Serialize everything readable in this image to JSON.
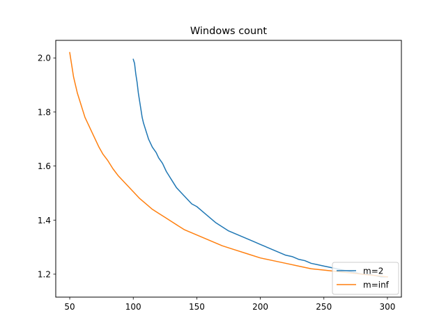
{
  "chart_data": {
    "type": "line",
    "title": "Windows count",
    "xlabel": "",
    "ylabel": "",
    "xlim": [
      39,
      311
    ],
    "ylim": [
      1.115,
      2.065
    ],
    "xticks": [
      50,
      100,
      150,
      200,
      250,
      300
    ],
    "yticks": [
      1.2,
      1.4,
      1.6,
      1.8,
      2.0
    ],
    "ytick_labels": [
      "1.2",
      "1.4",
      "1.6",
      "1.8",
      "2.0"
    ],
    "grid": false,
    "legend_position": "lower-right",
    "series": [
      {
        "name": "m=2",
        "color": "#1f77b4",
        "x": [
          100,
          101,
          102,
          103,
          104,
          105,
          106,
          107,
          108,
          110,
          112,
          115,
          118,
          120,
          123,
          126,
          130,
          134,
          138,
          142,
          146,
          150,
          155,
          160,
          165,
          170,
          175,
          180,
          185,
          190,
          195,
          200,
          205,
          210,
          215,
          220,
          225,
          230,
          235,
          240,
          245,
          250,
          255,
          260,
          265,
          270,
          275,
          280,
          285,
          290,
          295,
          300
        ],
        "values": [
          1.995,
          1.98,
          1.94,
          1.91,
          1.87,
          1.84,
          1.81,
          1.78,
          1.76,
          1.73,
          1.7,
          1.67,
          1.65,
          1.63,
          1.61,
          1.58,
          1.55,
          1.52,
          1.5,
          1.48,
          1.46,
          1.45,
          1.43,
          1.41,
          1.39,
          1.375,
          1.36,
          1.35,
          1.34,
          1.33,
          1.32,
          1.31,
          1.3,
          1.29,
          1.28,
          1.27,
          1.265,
          1.255,
          1.25,
          1.24,
          1.235,
          1.23,
          1.225,
          1.22,
          1.215,
          1.21,
          1.205,
          1.2,
          1.2,
          1.195,
          1.19,
          1.19
        ]
      },
      {
        "name": "m=inf",
        "color": "#ff7f0e",
        "x": [
          50,
          51,
          52,
          53,
          54,
          55,
          56,
          58,
          60,
          62,
          65,
          68,
          70,
          73,
          76,
          80,
          84,
          88,
          92,
          96,
          100,
          105,
          110,
          115,
          120,
          125,
          130,
          135,
          140,
          145,
          150,
          155,
          160,
          170,
          180,
          190,
          200,
          210,
          220,
          230,
          240,
          250,
          260,
          270,
          280,
          290,
          300
        ],
        "values": [
          2.02,
          1.99,
          1.96,
          1.93,
          1.91,
          1.89,
          1.87,
          1.84,
          1.81,
          1.78,
          1.75,
          1.72,
          1.7,
          1.67,
          1.645,
          1.62,
          1.59,
          1.565,
          1.545,
          1.525,
          1.505,
          1.48,
          1.46,
          1.44,
          1.425,
          1.41,
          1.395,
          1.38,
          1.365,
          1.355,
          1.345,
          1.335,
          1.325,
          1.305,
          1.29,
          1.275,
          1.26,
          1.25,
          1.24,
          1.23,
          1.22,
          1.215,
          1.21,
          1.205,
          1.2,
          1.195,
          1.19
        ]
      }
    ]
  }
}
